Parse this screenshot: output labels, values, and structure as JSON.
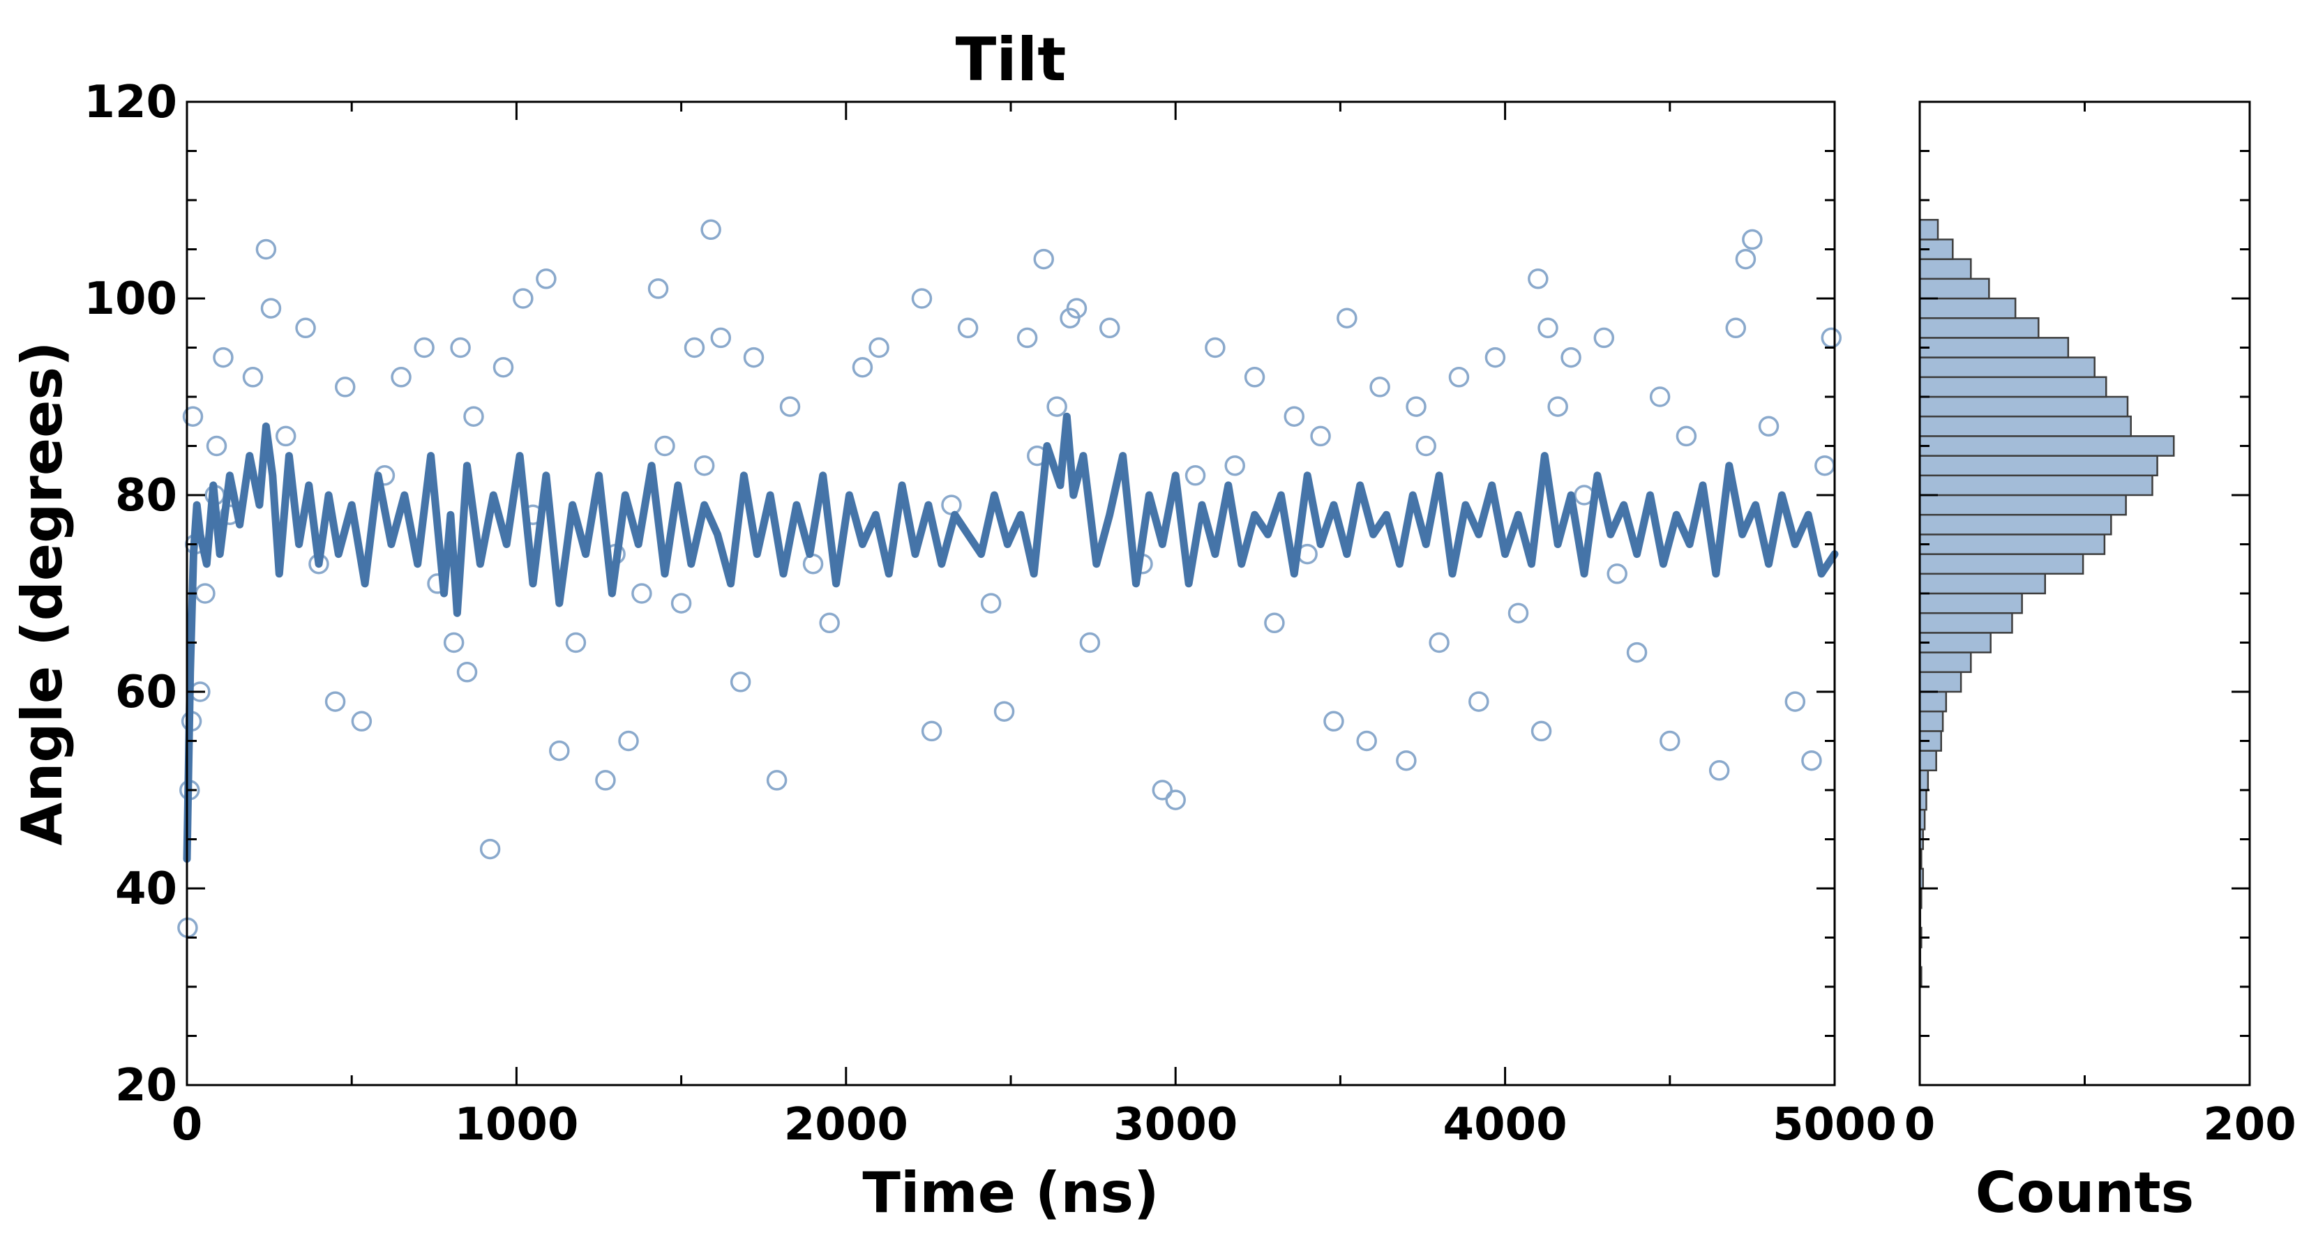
{
  "chart_data": [
    {
      "type": "scatter",
      "title": "Tilt",
      "xlabel": "Time (ns)",
      "ylabel": "Angle (degrees)",
      "xlim": [
        0,
        5000
      ],
      "ylim": [
        20,
        120
      ],
      "xticks": [
        0,
        1000,
        2000,
        3000,
        4000,
        5000
      ],
      "yticks": [
        20,
        40,
        60,
        80,
        100,
        120
      ],
      "grid": false,
      "legend": "none",
      "series": [
        {
          "kind": "scatter",
          "marker": "hollow-circle",
          "color": "#8aa9cc",
          "x": [
            2,
            8,
            14,
            18,
            25,
            40,
            55,
            85,
            90,
            110,
            130,
            200,
            240,
            255,
            300,
            360,
            400,
            450,
            480,
            530,
            600,
            650,
            720,
            760,
            810,
            830,
            850,
            870,
            920,
            960,
            1020,
            1050,
            1090,
            1130,
            1180,
            1270,
            1300,
            1340,
            1380,
            1430,
            1450,
            1500,
            1540,
            1570,
            1590,
            1620,
            1680,
            1720,
            1790,
            1830,
            1900,
            1950,
            2050,
            2100,
            2230,
            2260,
            2320,
            2370,
            2440,
            2480,
            2550,
            2580,
            2600,
            2640,
            2680,
            2700,
            2740,
            2800,
            2900,
            2960,
            3000,
            3060,
            3120,
            3180,
            3240,
            3300,
            3360,
            3400,
            3440,
            3480,
            3520,
            3580,
            3620,
            3700,
            3730,
            3760,
            3800,
            3860,
            3920,
            3970,
            4040,
            4100,
            4110,
            4130,
            4160,
            4200,
            4240,
            4300,
            4340,
            4400,
            4470,
            4500,
            4550,
            4650,
            4700,
            4730,
            4750,
            4800,
            4880,
            4930,
            4970,
            4990
          ],
          "y": [
            36,
            50,
            57,
            88,
            75,
            60,
            70,
            80,
            85,
            94,
            78,
            92,
            105,
            99,
            86,
            97,
            73,
            59,
            91,
            57,
            82,
            92,
            95,
            71,
            65,
            95,
            62,
            88,
            44,
            93,
            100,
            78,
            102,
            54,
            65,
            51,
            74,
            55,
            70,
            101,
            85,
            69,
            95,
            83,
            107,
            96,
            61,
            94,
            51,
            89,
            73,
            67,
            93,
            95,
            100,
            56,
            79,
            97,
            69,
            58,
            96,
            84,
            104,
            89,
            98,
            99,
            65,
            97,
            73,
            50,
            49,
            82,
            95,
            83,
            92,
            67,
            88,
            74,
            86,
            57,
            98,
            55,
            91,
            53,
            89,
            85,
            65,
            92,
            59,
            94,
            68,
            102,
            56,
            97,
            89,
            94,
            80,
            96,
            72,
            64,
            90,
            55,
            86,
            52,
            97,
            104,
            106,
            87,
            59,
            53,
            83,
            96
          ]
        },
        {
          "kind": "line",
          "color": "#4574a8",
          "x": [
            0,
            10,
            20,
            30,
            40,
            60,
            80,
            100,
            130,
            160,
            190,
            220,
            240,
            260,
            280,
            310,
            340,
            370,
            400,
            430,
            460,
            500,
            540,
            580,
            620,
            660,
            700,
            740,
            780,
            800,
            820,
            850,
            890,
            930,
            970,
            1010,
            1050,
            1090,
            1130,
            1170,
            1210,
            1250,
            1290,
            1330,
            1370,
            1410,
            1450,
            1490,
            1530,
            1570,
            1610,
            1650,
            1690,
            1730,
            1770,
            1810,
            1850,
            1890,
            1930,
            1970,
            2010,
            2050,
            2090,
            2130,
            2170,
            2210,
            2250,
            2290,
            2330,
            2370,
            2410,
            2450,
            2490,
            2530,
            2570,
            2610,
            2650,
            2670,
            2690,
            2720,
            2760,
            2800,
            2840,
            2880,
            2920,
            2960,
            3000,
            3040,
            3080,
            3120,
            3160,
            3200,
            3240,
            3280,
            3320,
            3360,
            3400,
            3440,
            3480,
            3520,
            3560,
            3600,
            3640,
            3680,
            3720,
            3760,
            3800,
            3840,
            3880,
            3920,
            3960,
            4000,
            4040,
            4080,
            4120,
            4160,
            4200,
            4240,
            4280,
            4320,
            4360,
            4400,
            4440,
            4480,
            4520,
            4560,
            4600,
            4640,
            4680,
            4720,
            4760,
            4800,
            4840,
            4880,
            4920,
            4960,
            5000
          ],
          "y": [
            43,
            62,
            74,
            79,
            76,
            73,
            81,
            74,
            82,
            77,
            84,
            79,
            87,
            82,
            72,
            84,
            75,
            81,
            73,
            80,
            74,
            79,
            71,
            82,
            75,
            80,
            73,
            84,
            70,
            78,
            68,
            83,
            73,
            80,
            75,
            84,
            71,
            82,
            69,
            79,
            74,
            82,
            70,
            80,
            75,
            83,
            72,
            81,
            73,
            79,
            76,
            71,
            82,
            74,
            80,
            72,
            79,
            74,
            82,
            71,
            80,
            75,
            78,
            72,
            81,
            74,
            79,
            73,
            78,
            76,
            74,
            80,
            75,
            78,
            72,
            85,
            81,
            88,
            80,
            84,
            73,
            78,
            84,
            71,
            80,
            75,
            82,
            71,
            79,
            74,
            81,
            73,
            78,
            76,
            80,
            72,
            82,
            75,
            79,
            74,
            81,
            76,
            78,
            73,
            80,
            75,
            82,
            72,
            79,
            76,
            81,
            74,
            78,
            73,
            84,
            75,
            80,
            72,
            82,
            76,
            79,
            74,
            80,
            73,
            78,
            75,
            81,
            72,
            83,
            76,
            79,
            73,
            80,
            75,
            78,
            72,
            74
          ]
        }
      ]
    },
    {
      "type": "bar",
      "orientation": "horizontal",
      "xlabel": "Counts",
      "xlim": [
        0,
        200
      ],
      "ylim": [
        20,
        120
      ],
      "xticks": [
        0,
        200
      ],
      "color": "#a3bcd8",
      "edgecolor": "#3d3d3d",
      "bin_width": 2,
      "bin_starts": [
        30,
        32,
        34,
        36,
        38,
        40,
        42,
        44,
        46,
        48,
        50,
        52,
        54,
        56,
        58,
        60,
        62,
        64,
        66,
        68,
        70,
        72,
        74,
        76,
        78,
        80,
        82,
        84,
        86,
        88,
        90,
        92,
        94,
        96,
        98,
        100,
        102,
        104,
        106
      ],
      "values": [
        1,
        0,
        1,
        0,
        1,
        2,
        1,
        2,
        3,
        4,
        5,
        10,
        13,
        14,
        16,
        25,
        31,
        43,
        56,
        62,
        76,
        99,
        112,
        116,
        125,
        141,
        144,
        154,
        128,
        126,
        113,
        106,
        90,
        72,
        58,
        42,
        31,
        20,
        11
      ]
    }
  ]
}
